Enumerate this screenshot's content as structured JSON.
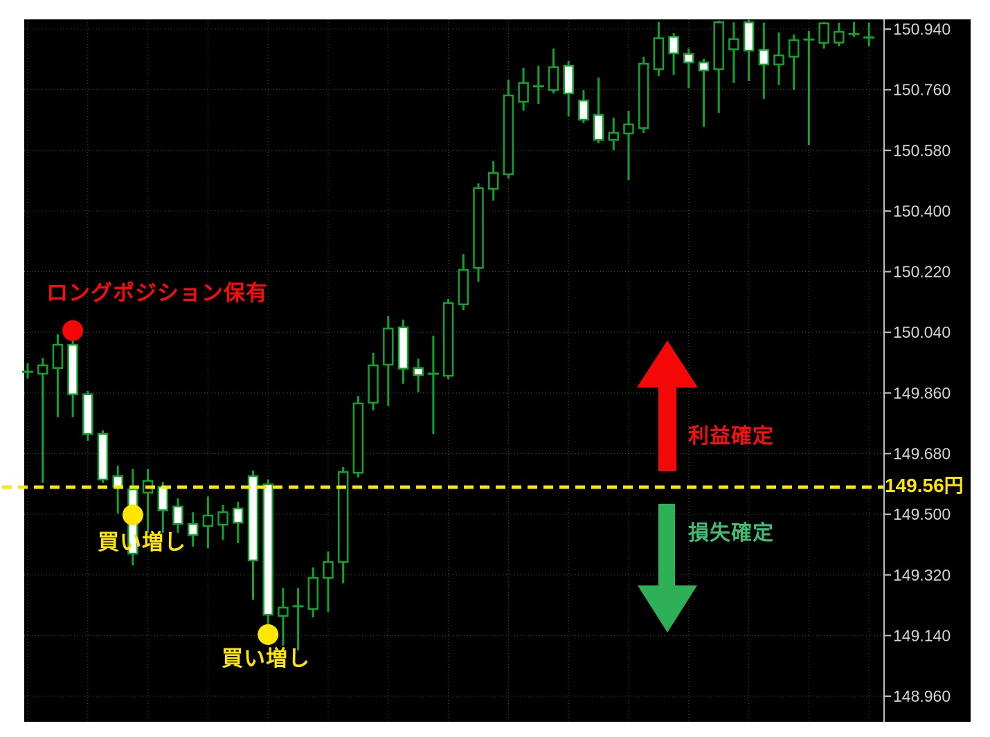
{
  "annotations": {
    "long_position": "ロングポジション保有",
    "add_buy_1": "買い増し",
    "add_buy_2": "買い増し",
    "take_profit": "利益確定",
    "loss_cut": "損失確定",
    "price_line_label": "149.56円"
  },
  "colors": {
    "page_background": "#ffffff",
    "chart_background": "#000000",
    "candle_outline_green": "#12a22e",
    "bull_body_fill": "#000000",
    "bear_body_fill": "#ffffff",
    "grid": "#44504d",
    "axis_line": "#c0c0c0",
    "axis_text": "#d6d6d6",
    "annotation_red": "#fb0b0b",
    "annotation_yellow": "#ffe600",
    "annotation_green": "#3fbd72",
    "arrow_red": "#f40808",
    "arrow_green": "#2eb156"
  },
  "markers": {
    "dots": [
      {
        "name": "long-entry-dot",
        "color": "#f60606",
        "candle_index": 3,
        "price": 150.045
      },
      {
        "name": "add-buy-dot-1",
        "color": "#ffe600",
        "candle_index": 7,
        "price": 149.498
      },
      {
        "name": "add-buy-dot-2",
        "color": "#ffe600",
        "candle_index": 16,
        "price": 149.143
      }
    ],
    "arrows": [
      {
        "name": "take-profit-arrow",
        "direction": "up",
        "color": "#f40808"
      },
      {
        "name": "loss-cut-arrow",
        "direction": "down",
        "color": "#2eb156"
      }
    ]
  },
  "chart_data": {
    "type": "candlestick",
    "title": "",
    "legend_position": "none",
    "grid": true,
    "y_axis": {
      "side": "right",
      "tick_step": 0.18,
      "ticks": [
        "150.940",
        "150.760",
        "150.580",
        "150.400",
        "150.220",
        "150.040",
        "149.860",
        "149.680",
        "149.500",
        "149.320",
        "149.140",
        "148.960"
      ]
    },
    "price_line": {
      "value": 149.56,
      "color": "#ffe600",
      "style": "dashed"
    },
    "candles": [
      [
        149.921,
        149.948,
        149.903,
        149.925
      ],
      [
        149.917,
        149.964,
        149.593,
        149.942
      ],
      [
        149.934,
        150.034,
        149.788,
        150.003
      ],
      [
        150.003,
        150.02,
        149.788,
        149.856
      ],
      [
        149.856,
        149.866,
        149.718,
        149.738
      ],
      [
        149.738,
        149.749,
        149.593,
        149.603
      ],
      [
        149.613,
        149.644,
        149.502,
        149.582
      ],
      [
        149.574,
        149.634,
        149.348,
        149.383
      ],
      [
        149.564,
        149.634,
        149.445,
        149.599
      ],
      [
        149.582,
        149.595,
        149.445,
        149.512
      ],
      [
        149.523,
        149.547,
        149.445,
        149.471
      ],
      [
        149.471,
        149.506,
        149.404,
        149.438
      ],
      [
        149.465,
        149.553,
        149.399,
        149.496
      ],
      [
        149.469,
        149.527,
        149.424,
        149.506
      ],
      [
        149.517,
        149.537,
        149.414,
        149.475
      ],
      [
        149.613,
        149.63,
        149.246,
        149.363
      ],
      [
        149.589,
        149.603,
        149.173,
        149.202
      ],
      [
        149.198,
        149.281,
        149.11,
        149.223
      ],
      [
        149.225,
        149.281,
        149.096,
        149.229
      ],
      [
        149.219,
        149.342,
        149.194,
        149.311
      ],
      [
        149.311,
        149.389,
        149.21,
        149.358
      ],
      [
        149.358,
        149.64,
        149.295,
        149.625
      ],
      [
        149.623,
        149.851,
        149.609,
        149.829
      ],
      [
        149.831,
        149.979,
        149.808,
        149.942
      ],
      [
        149.944,
        150.088,
        149.821,
        150.051
      ],
      [
        150.055,
        150.078,
        149.887,
        149.932
      ],
      [
        149.934,
        149.962,
        149.862,
        149.913
      ],
      [
        149.915,
        150.03,
        149.738,
        149.919
      ],
      [
        149.911,
        150.139,
        149.901,
        150.127
      ],
      [
        150.123,
        150.272,
        150.106,
        150.225
      ],
      [
        150.231,
        150.482,
        150.19,
        150.468
      ],
      [
        150.466,
        150.548,
        150.431,
        150.513
      ],
      [
        150.509,
        150.79,
        150.496,
        150.743
      ],
      [
        150.724,
        150.825,
        150.698,
        150.78
      ],
      [
        150.768,
        150.831,
        150.718,
        150.772
      ],
      [
        150.759,
        150.882,
        150.749,
        150.827
      ],
      [
        150.831,
        150.846,
        150.681,
        150.749
      ],
      [
        150.728,
        150.759,
        150.661,
        150.671
      ],
      [
        150.685,
        150.796,
        150.601,
        150.611
      ],
      [
        150.611,
        150.677,
        150.581,
        150.632
      ],
      [
        150.63,
        150.698,
        150.492,
        150.657
      ],
      [
        150.646,
        150.858,
        150.632,
        150.837
      ],
      [
        150.821,
        150.961,
        150.8,
        150.913
      ],
      [
        150.917,
        150.928,
        150.804,
        150.868
      ],
      [
        150.866,
        150.882,
        150.765,
        150.841
      ],
      [
        150.841,
        150.852,
        150.65,
        150.817
      ],
      [
        150.821,
        150.965,
        150.691,
        150.96
      ],
      [
        150.88,
        150.96,
        150.78,
        150.91
      ],
      [
        150.96,
        150.967,
        150.786,
        150.876
      ],
      [
        150.878,
        150.959,
        150.733,
        150.835
      ],
      [
        150.835,
        150.93,
        150.774,
        150.862
      ],
      [
        150.858,
        150.924,
        150.759,
        150.907
      ],
      [
        150.908,
        150.934,
        150.595,
        150.91
      ],
      [
        150.899,
        150.961,
        150.882,
        150.957
      ],
      [
        150.9,
        150.959,
        150.889,
        150.932
      ],
      [
        150.923,
        150.961,
        150.917,
        150.927
      ],
      [
        150.913,
        150.959,
        150.889,
        150.917
      ]
    ]
  }
}
